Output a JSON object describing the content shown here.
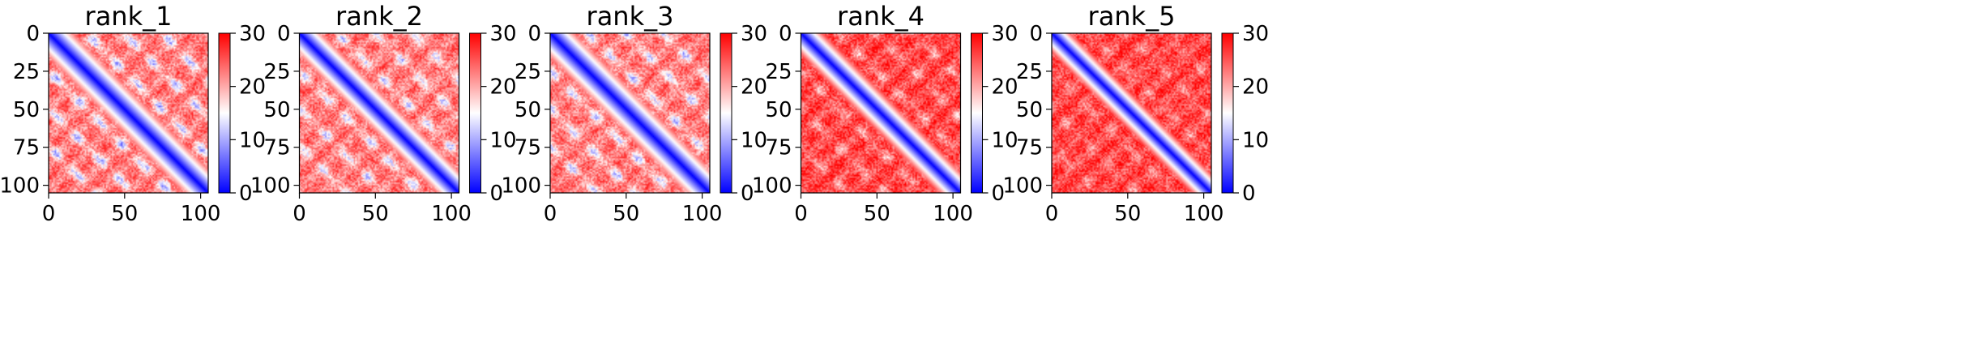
{
  "chart_data": [
    {
      "type": "heatmap",
      "title": "rank_1",
      "size": 106,
      "x_ticks": [
        "0",
        "50",
        "100"
      ],
      "y_ticks": [
        "0",
        "25",
        "50",
        "75",
        "100"
      ],
      "xlim": [
        0,
        105
      ],
      "ylim": [
        105,
        0
      ],
      "colorbar": {
        "min": 0,
        "max": 30,
        "ticks": [
          "0",
          "10",
          "20",
          "30"
        ],
        "colormap": "bwr"
      },
      "pattern": {
        "diagonal_width": 5.5,
        "band_offsets": [
          25,
          50,
          75
        ],
        "band_depth": 0.55,
        "background": 23
      }
    },
    {
      "type": "heatmap",
      "title": "rank_2",
      "size": 106,
      "x_ticks": [
        "0",
        "50",
        "100"
      ],
      "y_ticks": [
        "0",
        "25",
        "50",
        "75",
        "100"
      ],
      "xlim": [
        0,
        105
      ],
      "ylim": [
        105,
        0
      ],
      "colorbar": {
        "min": 0,
        "max": 30,
        "ticks": [
          "0",
          "10",
          "20",
          "30"
        ],
        "colormap": "bwr"
      },
      "pattern": {
        "diagonal_width": 5,
        "band_offsets": [
          25,
          50,
          75
        ],
        "band_depth": 0.45,
        "background": 23
      }
    },
    {
      "type": "heatmap",
      "title": "rank_3",
      "size": 106,
      "x_ticks": [
        "0",
        "50",
        "100"
      ],
      "y_ticks": [
        "0",
        "25",
        "50",
        "75",
        "100"
      ],
      "xlim": [
        0,
        105
      ],
      "ylim": [
        105,
        0
      ],
      "colorbar": {
        "min": 0,
        "max": 30,
        "ticks": [
          "0",
          "10",
          "20",
          "30"
        ],
        "colormap": "bwr"
      },
      "pattern": {
        "diagonal_width": 5.5,
        "band_offsets": [
          25,
          50,
          75
        ],
        "band_depth": 0.5,
        "background": 23
      }
    },
    {
      "type": "heatmap",
      "title": "rank_4",
      "size": 106,
      "x_ticks": [
        "0",
        "50",
        "100"
      ],
      "y_ticks": [
        "0",
        "25",
        "50",
        "75",
        "100"
      ],
      "xlim": [
        0,
        105
      ],
      "ylim": [
        105,
        0
      ],
      "colorbar": {
        "min": 0,
        "max": 30,
        "ticks": [
          "0",
          "10",
          "20",
          "30"
        ],
        "colormap": "bwr"
      },
      "pattern": {
        "diagonal_width": 4.5,
        "band_offsets": [
          25,
          50,
          75
        ],
        "band_depth": 0.25,
        "background": 26
      }
    },
    {
      "type": "heatmap",
      "title": "rank_5",
      "size": 106,
      "x_ticks": [
        "0",
        "50",
        "100"
      ],
      "y_ticks": [
        "0",
        "25",
        "50",
        "75",
        "100"
      ],
      "xlim": [
        0,
        105
      ],
      "ylim": [
        105,
        0
      ],
      "colorbar": {
        "min": 0,
        "max": 30,
        "ticks": [
          "0",
          "10",
          "20",
          "30"
        ],
        "colormap": "bwr"
      },
      "pattern": {
        "diagonal_width": 4,
        "band_offsets": [
          25,
          50,
          75
        ],
        "band_depth": 0.18,
        "background": 26
      }
    }
  ]
}
